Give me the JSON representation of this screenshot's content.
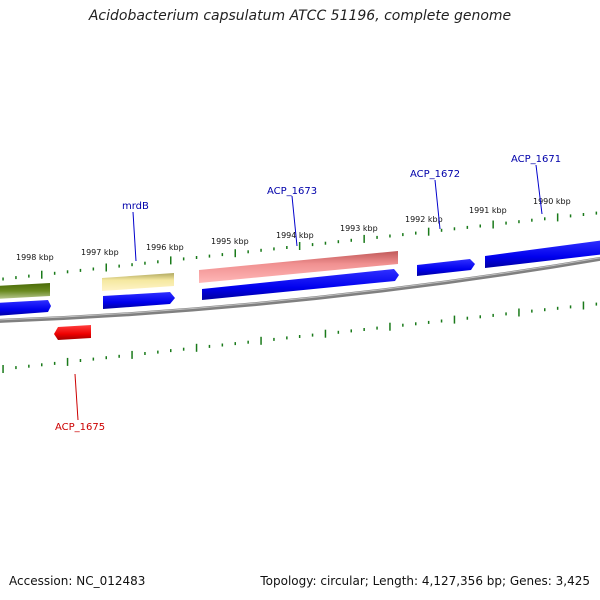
{
  "title": "Acidobacterium capsulatum ATCC 51196, complete genome",
  "footer": {
    "accession": "Accession: NC_012483",
    "summary": "Topology: circular; Length: 4,127,356 bp; Genes: 3,425"
  },
  "colors": {
    "backbone": "#8a8a8a",
    "tick": "#1a7a1a",
    "forward_gene": "#0000ee",
    "reverse_gene": "#ee0000",
    "rrna": "#5a7a10",
    "trna": "#f5e8a0",
    "pseudo": "#f09090"
  },
  "scale_ticks": [
    {
      "label": "1998 kbp"
    },
    {
      "label": "1997 kbp"
    },
    {
      "label": "1996 kbp"
    },
    {
      "label": "1995 kbp"
    },
    {
      "label": "1994 kbp"
    },
    {
      "label": "1993 kbp"
    },
    {
      "label": "1992 kbp"
    },
    {
      "label": "1991 kbp"
    },
    {
      "label": "1990 kbp"
    }
  ],
  "gene_labels": [
    {
      "text": "mrdB",
      "color": "#0000aa"
    },
    {
      "text": "ACP_1673",
      "color": "#0000aa"
    },
    {
      "text": "ACP_1672",
      "color": "#0000aa"
    },
    {
      "text": "ACP_1671",
      "color": "#0000aa"
    },
    {
      "text": "ACP_1675",
      "color": "#cc0000"
    }
  ]
}
